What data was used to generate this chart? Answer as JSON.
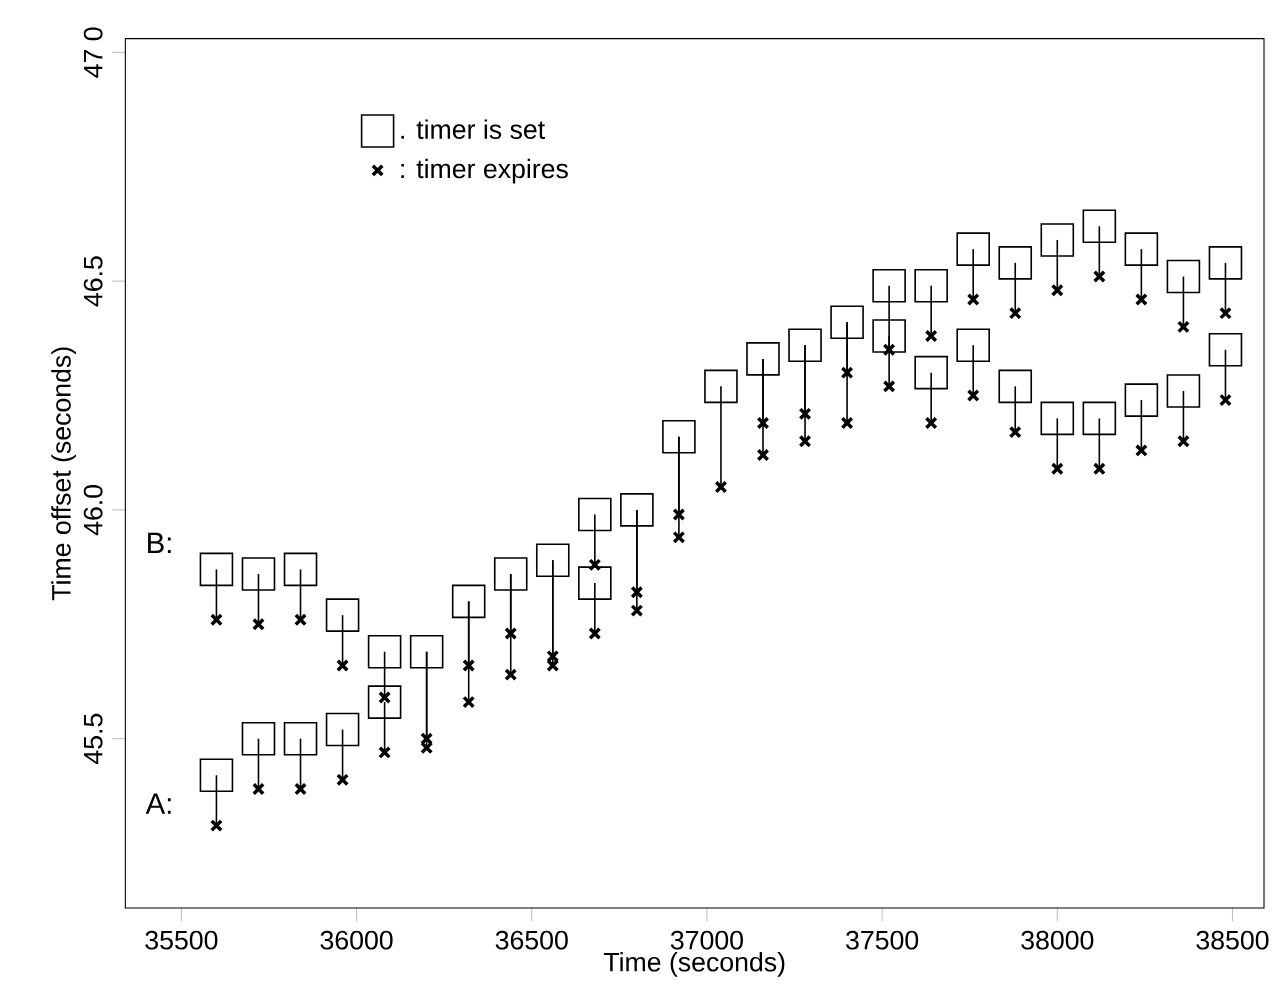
{
  "chart_data": {
    "type": "scatter",
    "xlabel": "Time (seconds)",
    "ylabel": "Time offset (seconds)",
    "xlim": [
      35340,
      38590
    ],
    "ylim": [
      45.13,
      47.03
    ],
    "xticks": [
      35500,
      36000,
      36500,
      37000,
      37500,
      38000,
      38500
    ],
    "yticks": [
      {
        "value": 45.5,
        "label": "45.5"
      },
      {
        "value": 46.0,
        "label": "46.0"
      },
      {
        "value": 46.5,
        "label": "46.5"
      },
      {
        "value": 47.0,
        "label": "47 0"
      }
    ],
    "grid": false,
    "legend": "top left",
    "annotations": [
      "A:",
      "B:"
    ],
    "series": [
      {
        "name": ". timer is set",
        "color": "#000000",
        "marker": "square",
        "x": [
          35600,
          35600,
          35720,
          35720,
          35840,
          35840,
          35960,
          35960,
          36080,
          36080,
          36200,
          36320,
          36440,
          36560,
          36680,
          36680,
          36800,
          36920,
          37040,
          37160,
          37280,
          37400,
          37520,
          37520,
          37640,
          37640,
          37760,
          37760,
          37880,
          37880,
          38000,
          38000,
          38120,
          38120,
          38240,
          38240,
          38360,
          38360,
          38480,
          38480
        ],
        "values": [
          45.87,
          45.42,
          45.86,
          45.5,
          45.87,
          45.5,
          45.77,
          45.52,
          45.69,
          45.58,
          45.69,
          45.8,
          45.86,
          45.89,
          45.99,
          45.84,
          46.0,
          46.16,
          46.27,
          46.33,
          46.36,
          46.41,
          46.49,
          46.38,
          46.49,
          46.3,
          46.57,
          46.36,
          46.54,
          46.27,
          46.59,
          46.2,
          46.62,
          46.2,
          46.57,
          46.24,
          46.51,
          46.26,
          46.54,
          46.35
        ]
      },
      {
        "name": ": timer expires",
        "color": "#000000",
        "marker": "cross",
        "x": [
          35600,
          35600,
          35720,
          35720,
          35840,
          35840,
          35960,
          35960,
          36080,
          36080,
          36200,
          36200,
          36320,
          36320,
          36440,
          36440,
          36560,
          36560,
          36680,
          36680,
          36800,
          36800,
          36920,
          36920,
          37040,
          37160,
          37160,
          37280,
          37280,
          37400,
          37400,
          37520,
          37520,
          37640,
          37640,
          37760,
          37760,
          37880,
          37880,
          38000,
          38000,
          38120,
          38120,
          38240,
          38240,
          38360,
          38360,
          38480,
          38480
        ],
        "values": [
          45.76,
          45.31,
          45.75,
          45.39,
          45.76,
          45.39,
          45.66,
          45.41,
          45.59,
          45.47,
          45.5,
          45.48,
          45.66,
          45.58,
          45.73,
          45.64,
          45.68,
          45.66,
          45.88,
          45.73,
          45.82,
          45.78,
          45.99,
          45.94,
          46.05,
          46.19,
          46.12,
          46.21,
          46.15,
          46.3,
          46.19,
          46.35,
          46.27,
          46.38,
          46.19,
          46.46,
          46.25,
          46.43,
          46.17,
          46.48,
          46.09,
          46.51,
          46.09,
          46.46,
          46.13,
          46.4,
          46.15,
          46.43,
          46.24
        ],
        "errors": [
          [
            45.76,
            45.87
          ],
          [
            45.31,
            45.42
          ],
          [
            45.75,
            45.86
          ],
          [
            45.39,
            45.5
          ],
          [
            45.76,
            45.87
          ],
          [
            45.39,
            45.5
          ],
          [
            45.66,
            45.77
          ],
          [
            45.41,
            45.52
          ],
          [
            45.59,
            45.69
          ],
          [
            45.47,
            45.58
          ],
          [
            45.5,
            45.69
          ],
          [
            45.48,
            45.69
          ],
          [
            45.66,
            45.8
          ],
          [
            45.58,
            45.8
          ],
          [
            45.73,
            45.86
          ],
          [
            45.64,
            45.86
          ],
          [
            45.68,
            45.89
          ],
          [
            45.66,
            45.89
          ],
          [
            45.88,
            45.99
          ],
          [
            45.73,
            45.84
          ],
          [
            45.82,
            46.0
          ],
          [
            45.78,
            46.0
          ],
          [
            45.99,
            46.16
          ],
          [
            45.94,
            46.16
          ],
          [
            46.05,
            46.27
          ],
          [
            46.19,
            46.33
          ],
          [
            46.12,
            46.33
          ],
          [
            46.21,
            46.36
          ],
          [
            46.15,
            46.36
          ],
          [
            46.3,
            46.41
          ],
          [
            46.19,
            46.41
          ],
          [
            46.35,
            46.49
          ],
          [
            46.27,
            46.38
          ],
          [
            46.38,
            46.49
          ],
          [
            46.19,
            46.3
          ],
          [
            46.46,
            46.57
          ],
          [
            46.25,
            46.36
          ],
          [
            46.43,
            46.54
          ],
          [
            46.17,
            46.27
          ],
          [
            46.48,
            46.59
          ],
          [
            46.09,
            46.2
          ],
          [
            46.51,
            46.62
          ],
          [
            46.09,
            46.2
          ],
          [
            46.46,
            46.57
          ],
          [
            46.13,
            46.24
          ],
          [
            46.4,
            46.51
          ],
          [
            46.15,
            46.26
          ],
          [
            46.43,
            46.54
          ],
          [
            46.24,
            46.35
          ]
        ]
      }
    ]
  }
}
